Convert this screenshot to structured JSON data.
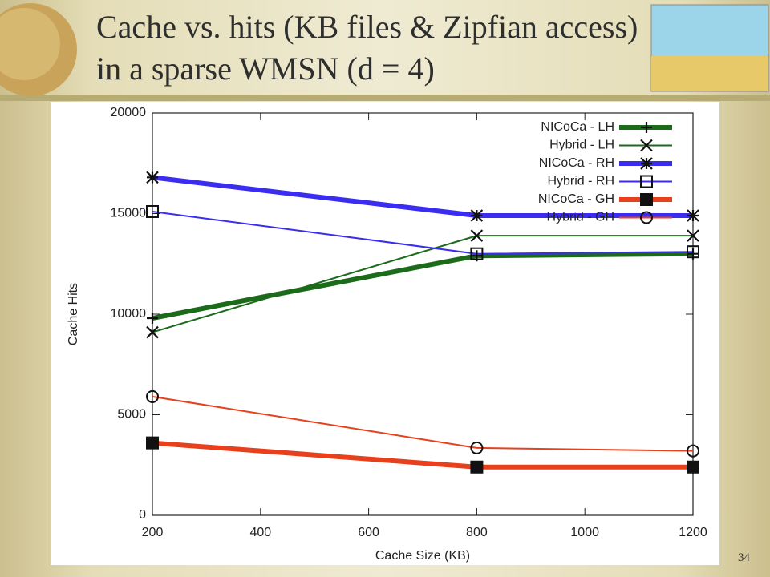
{
  "chart_data": {
    "type": "line",
    "title": "Cache vs. hits (KB files & Zipfian access) in a sparse WMSN (d = 4)",
    "xlabel": "Cache Size (KB)",
    "ylabel": "Cache Hits",
    "x": [
      200,
      800,
      1200
    ],
    "xlim": [
      200,
      1200
    ],
    "xticks": [
      200,
      400,
      600,
      800,
      1000,
      1200
    ],
    "ylim": [
      0,
      20000
    ],
    "yticks": [
      0,
      5000,
      10000,
      15000,
      20000
    ],
    "legend": "top-right",
    "series": [
      {
        "name": "NICoCa - LH",
        "color": "#1b6b1b",
        "marker": "plus",
        "line_width": 6,
        "values": [
          9800,
          12900,
          13000
        ]
      },
      {
        "name": "Hybrid - LH",
        "color": "#1b6b1b",
        "marker": "cross",
        "line_width": 2,
        "values": [
          9100,
          13900,
          13900
        ]
      },
      {
        "name": "NICoCa - RH",
        "color": "#3a2cf0",
        "marker": "star",
        "line_width": 6,
        "values": [
          16800,
          14900,
          14900
        ]
      },
      {
        "name": "Hybrid - RH",
        "color": "#3a2cf0",
        "marker": "square",
        "line_width": 2,
        "values": [
          15100,
          13000,
          13100
        ]
      },
      {
        "name": "NICoCa - GH",
        "color": "#e8401c",
        "marker": "filled-square",
        "line_width": 6,
        "values": [
          3600,
          2400,
          2400
        ]
      },
      {
        "name": "Hybrid - GH",
        "color": "#e8401c",
        "marker": "circle",
        "line_width": 2,
        "values": [
          5900,
          3350,
          3200
        ]
      }
    ]
  },
  "slide_number": "34"
}
